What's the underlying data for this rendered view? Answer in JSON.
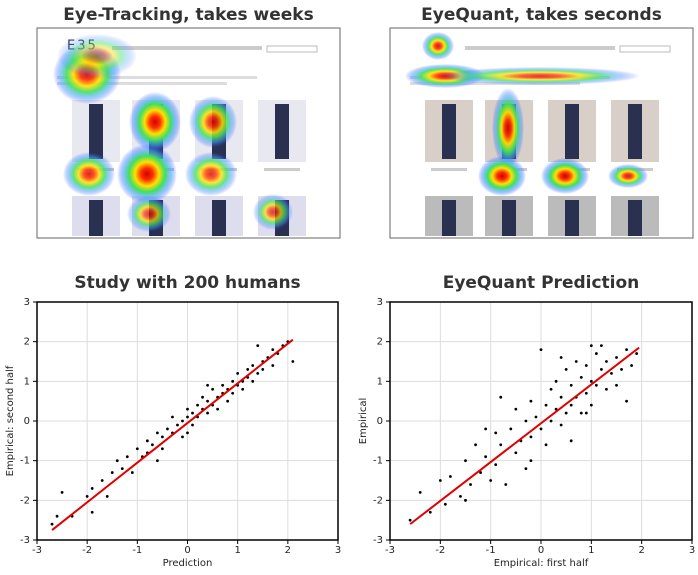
{
  "panels": [
    {
      "title": "Eye-Tracking, takes weeks",
      "logo": "E35"
    },
    {
      "title": "EyeQuant, takes seconds"
    }
  ],
  "chart_data": [
    {
      "type": "scatter",
      "title": "Study with 200 humans",
      "x_label": "Prediction",
      "y_label": "Empirical: second half",
      "color": "#000000",
      "fit_color": "#e00000",
      "grid": true,
      "xlim": [
        -3,
        3
      ],
      "ylim": [
        -3,
        3
      ],
      "xticks": [
        -3,
        -2,
        -1,
        0,
        1,
        2,
        3
      ],
      "yticks": [
        -3,
        -2,
        -1,
        0,
        1,
        2,
        3
      ],
      "x": [
        -2.7,
        -2.5,
        -2.3,
        -2.0,
        -1.9,
        -1.9,
        -1.7,
        -1.5,
        -1.4,
        -1.3,
        -1.2,
        -1.1,
        -1.0,
        -0.9,
        -0.8,
        -0.8,
        -0.7,
        -0.6,
        -0.5,
        -0.5,
        -0.4,
        -0.3,
        -0.3,
        -0.2,
        -0.1,
        -0.1,
        0.0,
        0.0,
        0.1,
        0.1,
        0.2,
        0.2,
        0.3,
        0.3,
        0.4,
        0.4,
        0.5,
        0.5,
        0.6,
        0.6,
        0.7,
        0.7,
        0.8,
        0.8,
        0.9,
        0.9,
        1.0,
        1.0,
        1.1,
        1.1,
        1.2,
        1.2,
        1.3,
        1.3,
        1.4,
        1.5,
        1.5,
        1.6,
        1.7,
        1.7,
        1.8,
        1.9,
        2.0,
        2.1,
        -2.6,
        -1.6,
        -0.6,
        0.4,
        1.4,
        0.0
      ],
      "y": [
        -2.6,
        -1.8,
        -2.4,
        -1.9,
        -2.3,
        -1.7,
        -1.5,
        -1.3,
        -1.0,
        -1.2,
        -0.9,
        -1.3,
        -0.7,
        -0.9,
        -0.5,
        -0.8,
        -0.6,
        -0.3,
        -0.4,
        -0.7,
        -0.2,
        -0.3,
        0.1,
        -0.1,
        0.0,
        -0.4,
        0.1,
        0.3,
        0.2,
        -0.1,
        0.4,
        0.1,
        0.3,
        0.6,
        0.2,
        0.5,
        0.4,
        0.8,
        0.6,
        0.3,
        0.7,
        0.9,
        0.5,
        0.8,
        1.0,
        0.7,
        0.9,
        1.2,
        1.0,
        0.8,
        1.3,
        1.1,
        1.0,
        1.4,
        1.2,
        1.5,
        1.3,
        1.6,
        1.4,
        1.8,
        1.7,
        1.9,
        2.0,
        1.5,
        -2.4,
        -1.9,
        -1.0,
        0.9,
        1.9,
        -0.3
      ],
      "fit": {
        "x": [
          -2.7,
          2.1
        ],
        "y": [
          -2.75,
          2.05
        ]
      }
    },
    {
      "type": "scatter",
      "title": "EyeQuant Prediction",
      "x_label": "Empirical: first half",
      "y_label": "Empirical",
      "color": "#000000",
      "fit_color": "#e00000",
      "grid": true,
      "xlim": [
        -3,
        3
      ],
      "ylim": [
        -3,
        3
      ],
      "xticks": [
        -3,
        -2,
        -1,
        0,
        1,
        2,
        3
      ],
      "yticks": [
        -3,
        -2,
        -1,
        0,
        1,
        2,
        3
      ],
      "x": [
        -2.6,
        -2.4,
        -2.2,
        -2.0,
        -1.9,
        -1.8,
        -1.6,
        -1.5,
        -1.4,
        -1.3,
        -1.2,
        -1.1,
        -1.0,
        -0.9,
        -0.9,
        -0.8,
        -0.7,
        -0.6,
        -0.5,
        -0.5,
        -0.4,
        -0.3,
        -0.3,
        -0.2,
        -0.2,
        -0.1,
        0.0,
        0.0,
        0.1,
        0.1,
        0.2,
        0.2,
        0.3,
        0.3,
        0.4,
        0.4,
        0.5,
        0.5,
        0.6,
        0.6,
        0.7,
        0.7,
        0.8,
        0.8,
        0.9,
        0.9,
        1.0,
        1.0,
        1.1,
        1.1,
        1.2,
        1.2,
        1.3,
        1.3,
        1.4,
        1.5,
        1.5,
        1.6,
        1.7,
        1.7,
        1.8,
        1.9,
        0.4,
        -0.8,
        -1.5,
        0.6,
        1.0,
        -0.2,
        0.9,
        -1.1
      ],
      "y": [
        -2.5,
        -1.8,
        -2.3,
        -1.5,
        -2.1,
        -1.4,
        -1.9,
        -1.0,
        -1.6,
        -0.6,
        -1.3,
        -0.9,
        -1.5,
        -0.3,
        -1.1,
        -0.6,
        -1.6,
        -0.2,
        -0.8,
        0.3,
        -0.5,
        -1.2,
        0.0,
        0.5,
        -0.4,
        0.1,
        1.8,
        -0.2,
        0.4,
        -0.6,
        0.8,
        0.0,
        0.3,
        1.0,
        -0.1,
        0.6,
        1.3,
        0.2,
        0.9,
        0.4,
        1.5,
        0.6,
        0.2,
        1.1,
        1.4,
        0.7,
        1.0,
        0.4,
        1.7,
        0.9,
        1.3,
        1.9,
        0.8,
        1.5,
        1.2,
        1.6,
        0.9,
        1.3,
        0.5,
        1.8,
        1.4,
        1.7,
        1.6,
        0.6,
        -2.0,
        -0.5,
        1.9,
        -1.0,
        0.2,
        -0.2
      ],
      "fit": {
        "x": [
          -2.6,
          1.95
        ],
        "y": [
          -2.6,
          1.85
        ]
      }
    }
  ]
}
